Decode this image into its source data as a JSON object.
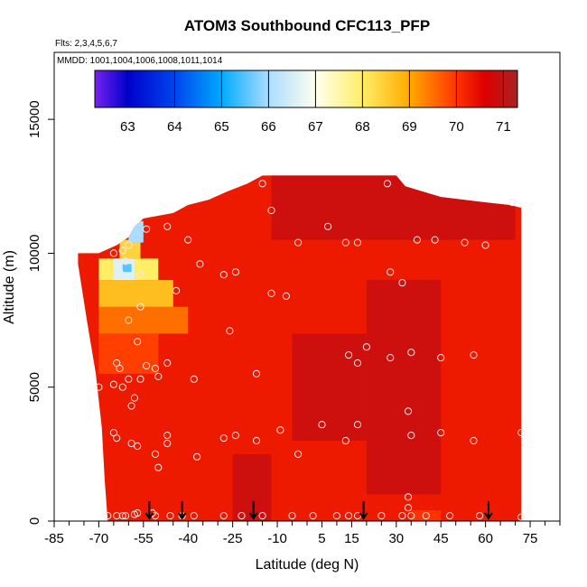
{
  "chart_data": {
    "type": "heatmap",
    "title": "ATOM3 Southbound CFC113_PFP",
    "annotations": [
      "Flts: 2,3,4,5,6,7",
      "MMDD: 1001,1004,1006,1008,1011,1014"
    ],
    "xlabel": "Latitude (deg N)",
    "ylabel": "Altitude (m)",
    "xlim": [
      -85,
      85
    ],
    "ylim": [
      0,
      17500
    ],
    "x_ticks": [
      -85,
      -70,
      -55,
      -40,
      -25,
      -10,
      5,
      15,
      30,
      45,
      60,
      75
    ],
    "x_tick_labels": [
      "-85",
      "-70",
      "-55",
      "-40",
      "-25",
      "-10",
      "5",
      "15",
      "30",
      "45",
      "60",
      "75"
    ],
    "y_ticks": [
      0,
      5000,
      10000,
      15000
    ],
    "y_tick_labels": [
      "0",
      "5000",
      "10000",
      "15000"
    ],
    "colorbar": {
      "min": 62.3,
      "max": 71.3,
      "ticks": [
        63,
        64,
        65,
        66,
        67,
        68,
        69,
        70,
        71
      ],
      "tick_labels": [
        "63",
        "64",
        "65",
        "66",
        "67",
        "68",
        "69",
        "70",
        "71"
      ],
      "stops": [
        {
          "value": 62.3,
          "color": "#7722ee"
        },
        {
          "value": 63.0,
          "color": "#0000cc"
        },
        {
          "value": 64.0,
          "color": "#0044ee"
        },
        {
          "value": 65.0,
          "color": "#00aaff"
        },
        {
          "value": 66.0,
          "color": "#aaddff"
        },
        {
          "value": 67.0,
          "color": "#ffffee"
        },
        {
          "value": 68.0,
          "color": "#ffee66"
        },
        {
          "value": 69.0,
          "color": "#ffaa00"
        },
        {
          "value": 70.0,
          "color": "#ff3300"
        },
        {
          "value": 70.6,
          "color": "#dd0000"
        },
        {
          "value": 71.3,
          "color": "#aa2222"
        }
      ]
    },
    "field": {
      "typical_value": 70.6,
      "background_value": 70.3,
      "core_value": 70.9,
      "core_regions": [
        {
          "lat": [
            -25,
            -12
          ],
          "alt": [
            0,
            2500
          ]
        },
        {
          "lat": [
            20,
            45
          ],
          "alt": [
            1000,
            9000
          ]
        },
        {
          "lat": [
            -12,
            70
          ],
          "alt": [
            10500,
            13000
          ]
        },
        {
          "lat": [
            -5,
            20
          ],
          "alt": [
            3000,
            7000
          ]
        }
      ],
      "polar_anomaly": [
        {
          "lat": [
            -70,
            -40
          ],
          "alt": [
            7000,
            8000
          ],
          "value": 69.5
        },
        {
          "lat": [
            -70,
            -45
          ],
          "alt": [
            8000,
            9000
          ],
          "value": 68.7
        },
        {
          "lat": [
            -70,
            -50
          ],
          "alt": [
            9000,
            9800
          ],
          "value": 68.0
        },
        {
          "lat": [
            -65,
            -58
          ],
          "alt": [
            9000,
            9800
          ],
          "value": 66.6
        },
        {
          "lat": [
            -62,
            -59
          ],
          "alt": [
            9300,
            9600
          ],
          "value": 65.5
        },
        {
          "lat": [
            -63,
            -56
          ],
          "alt": [
            9800,
            10500
          ],
          "value": 68.4
        },
        {
          "lat": [
            -60,
            -55
          ],
          "alt": [
            10400,
            11200
          ],
          "value": 66.0
        },
        {
          "lat": [
            -70,
            -50
          ],
          "alt": [
            5500,
            7000
          ],
          "value": 69.9
        }
      ],
      "surface_anomaly": {
        "lat": [
          35,
          45
        ],
        "alt": [
          0,
          400
        ],
        "value": 70.0
      }
    },
    "envelope_top": [
      {
        "lat": -77,
        "alt": 10000
      },
      {
        "lat": -70,
        "alt": 10000
      },
      {
        "lat": -64,
        "alt": 10300
      },
      {
        "lat": -60,
        "alt": 10600
      },
      {
        "lat": -58,
        "alt": 11000
      },
      {
        "lat": -55,
        "alt": 11300
      },
      {
        "lat": -45,
        "alt": 11500
      },
      {
        "lat": -40,
        "alt": 11800
      },
      {
        "lat": -33,
        "alt": 12000
      },
      {
        "lat": -27,
        "alt": 12300
      },
      {
        "lat": -20,
        "alt": 12600
      },
      {
        "lat": -15,
        "alt": 12900
      },
      {
        "lat": 30,
        "alt": 12900
      },
      {
        "lat": 33,
        "alt": 12500
      },
      {
        "lat": 45,
        "alt": 12100
      },
      {
        "lat": 60,
        "alt": 11900
      },
      {
        "lat": 68,
        "alt": 11800
      },
      {
        "lat": 72,
        "alt": 11700
      }
    ],
    "envelope_bottom": [
      {
        "lat": 72,
        "alt": 0
      },
      {
        "lat": -67,
        "alt": 0
      }
    ],
    "envelope_left": [
      {
        "lat": -67,
        "alt": 0
      },
      {
        "lat": -68,
        "alt": 1500
      },
      {
        "lat": -69,
        "alt": 3500
      },
      {
        "lat": -71,
        "alt": 5500
      },
      {
        "lat": -74,
        "alt": 7500
      },
      {
        "lat": -77,
        "alt": 9600
      },
      {
        "lat": -77,
        "alt": 10000
      }
    ],
    "samples": [
      [
        -67,
        200
      ],
      [
        -64,
        200
      ],
      [
        -62,
        200
      ],
      [
        -61,
        200
      ],
      [
        -58,
        250
      ],
      [
        -57,
        300
      ],
      [
        -52,
        300
      ],
      [
        -51,
        200
      ],
      [
        -46,
        200
      ],
      [
        -42,
        200
      ],
      [
        -38,
        200
      ],
      [
        -28,
        200
      ],
      [
        -22,
        200
      ],
      [
        -15,
        200
      ],
      [
        -5,
        200
      ],
      [
        2,
        200
      ],
      [
        10,
        200
      ],
      [
        14,
        200
      ],
      [
        17,
        200
      ],
      [
        25,
        200
      ],
      [
        32,
        200
      ],
      [
        34,
        500
      ],
      [
        34,
        900
      ],
      [
        35,
        200
      ],
      [
        40,
        200
      ],
      [
        48,
        200
      ],
      [
        58,
        200
      ],
      [
        72,
        150
      ],
      [
        -70,
        5000
      ],
      [
        -65,
        5100
      ],
      [
        -64,
        5900
      ],
      [
        -63,
        5700
      ],
      [
        -62,
        5000
      ],
      [
        -60,
        5300
      ],
      [
        -58,
        4600
      ],
      [
        -59,
        4300
      ],
      [
        -56,
        5300
      ],
      [
        -54,
        5800
      ],
      [
        -51,
        5700
      ],
      [
        -50,
        5400
      ],
      [
        -47,
        5900
      ],
      [
        -38,
        5300
      ],
      [
        -65,
        3300
      ],
      [
        -64,
        3100
      ],
      [
        -59,
        2900
      ],
      [
        -57,
        2800
      ],
      [
        -51,
        2500
      ],
      [
        -50,
        2000
      ],
      [
        -47,
        3200
      ],
      [
        -47,
        2900
      ],
      [
        -37,
        2400
      ],
      [
        -28,
        3100
      ],
      [
        -24,
        3200
      ],
      [
        -17,
        3000
      ],
      [
        -9,
        3400
      ],
      [
        -3,
        2500
      ],
      [
        5,
        3600
      ],
      [
        13,
        3000
      ],
      [
        17,
        3600
      ],
      [
        34,
        4100
      ],
      [
        35,
        3200
      ],
      [
        45,
        3300
      ],
      [
        56,
        3000
      ],
      [
        72,
        3300
      ],
      [
        -60,
        7500
      ],
      [
        -57,
        6700
      ],
      [
        -56,
        8000
      ],
      [
        -44,
        8600
      ],
      [
        -36,
        9600
      ],
      [
        -28,
        9200
      ],
      [
        -24,
        9300
      ],
      [
        -26,
        7100
      ],
      [
        -17,
        5500
      ],
      [
        -12,
        8500
      ],
      [
        -7,
        8400
      ],
      [
        -12,
        11600
      ],
      [
        -3,
        10400
      ],
      [
        7,
        11000
      ],
      [
        13,
        10400
      ],
      [
        17,
        10400
      ],
      [
        14,
        6200
      ],
      [
        20,
        6500
      ],
      [
        17,
        5900
      ],
      [
        28,
        6100
      ],
      [
        35,
        6300
      ],
      [
        45,
        6100
      ],
      [
        56,
        6200
      ],
      [
        28,
        9300
      ],
      [
        32,
        8900
      ],
      [
        37,
        10500
      ],
      [
        43,
        10500
      ],
      [
        53,
        10400
      ],
      [
        60,
        10300
      ],
      [
        69,
        11900
      ],
      [
        -15,
        12600
      ],
      [
        27,
        12600
      ],
      [
        -63,
        9300
      ],
      [
        -61,
        9700
      ],
      [
        -56,
        9200
      ],
      [
        -54,
        10900
      ],
      [
        -47,
        11000
      ],
      [
        -40,
        10500
      ],
      [
        -65,
        10000
      ],
      [
        -62,
        10100
      ],
      [
        -60,
        10300
      ]
    ],
    "arrows_lat": [
      -53,
      -42,
      -18,
      19,
      61
    ]
  }
}
